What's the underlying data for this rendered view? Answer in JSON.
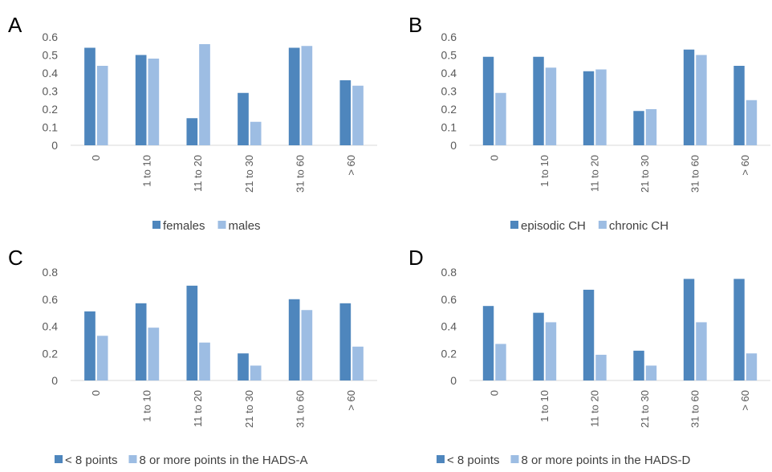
{
  "colors": {
    "series1": "#4e86bd",
    "series2": "#9dbde3",
    "axis": "#d9d9d9"
  },
  "chart_data": [
    {
      "panel": "A",
      "type": "bar",
      "categories": [
        "0",
        "1 to 10",
        "11 to 20",
        "21 to 30",
        "31 to 60",
        "> 60"
      ],
      "yticks": [
        "0",
        "0.1",
        "0.2",
        "0.3",
        "0.4",
        "0.5",
        "0.6"
      ],
      "ylim": [
        0,
        0.6
      ],
      "grid": false,
      "legend_position": "bottom",
      "series": [
        {
          "name": "females",
          "values": [
            0.54,
            0.5,
            0.15,
            0.29,
            0.54,
            0.36
          ]
        },
        {
          "name": "males",
          "values": [
            0.44,
            0.48,
            0.56,
            0.13,
            0.55,
            0.33
          ]
        }
      ]
    },
    {
      "panel": "B",
      "type": "bar",
      "categories": [
        "0",
        "1 to 10",
        "11 to 20",
        "21 to 30",
        "31 to 60",
        "> 60"
      ],
      "yticks": [
        "0",
        "0.1",
        "0.2",
        "0.3",
        "0.4",
        "0.5",
        "0.6"
      ],
      "ylim": [
        0,
        0.6
      ],
      "grid": false,
      "legend_position": "bottom",
      "series": [
        {
          "name": "episodic CH",
          "values": [
            0.49,
            0.49,
            0.41,
            0.19,
            0.53,
            0.44
          ]
        },
        {
          "name": "chronic CH",
          "values": [
            0.29,
            0.43,
            0.42,
            0.2,
            0.5,
            0.25
          ]
        }
      ]
    },
    {
      "panel": "C",
      "type": "bar",
      "categories": [
        "0",
        "1 to 10",
        "11 to 20",
        "21 to 30",
        "31 to 60",
        "> 60"
      ],
      "yticks": [
        "0",
        "0.2",
        "0.4",
        "0.6",
        "0.8"
      ],
      "ylim": [
        0,
        0.8
      ],
      "grid": false,
      "legend_position": "bottom",
      "series": [
        {
          "name": "< 8 points",
          "values": [
            0.51,
            0.57,
            0.7,
            0.2,
            0.6,
            0.57
          ]
        },
        {
          "name": "8 or more points in the HADS-A",
          "values": [
            0.33,
            0.39,
            0.28,
            0.11,
            0.52,
            0.25
          ]
        }
      ]
    },
    {
      "panel": "D",
      "type": "bar",
      "categories": [
        "0",
        "1 to 10",
        "11 to 20",
        "21 to 30",
        "31 to 60",
        "> 60"
      ],
      "yticks": [
        "0",
        "0.2",
        "0.4",
        "0.6",
        "0.8"
      ],
      "ylim": [
        0,
        0.8
      ],
      "grid": false,
      "legend_position": "bottom",
      "series": [
        {
          "name": "< 8 points",
          "values": [
            0.55,
            0.5,
            0.67,
            0.22,
            0.75,
            0.75
          ]
        },
        {
          "name": "8 or more points in the HADS-D",
          "values": [
            0.27,
            0.43,
            0.19,
            0.11,
            0.43,
            0.2
          ]
        }
      ]
    }
  ]
}
